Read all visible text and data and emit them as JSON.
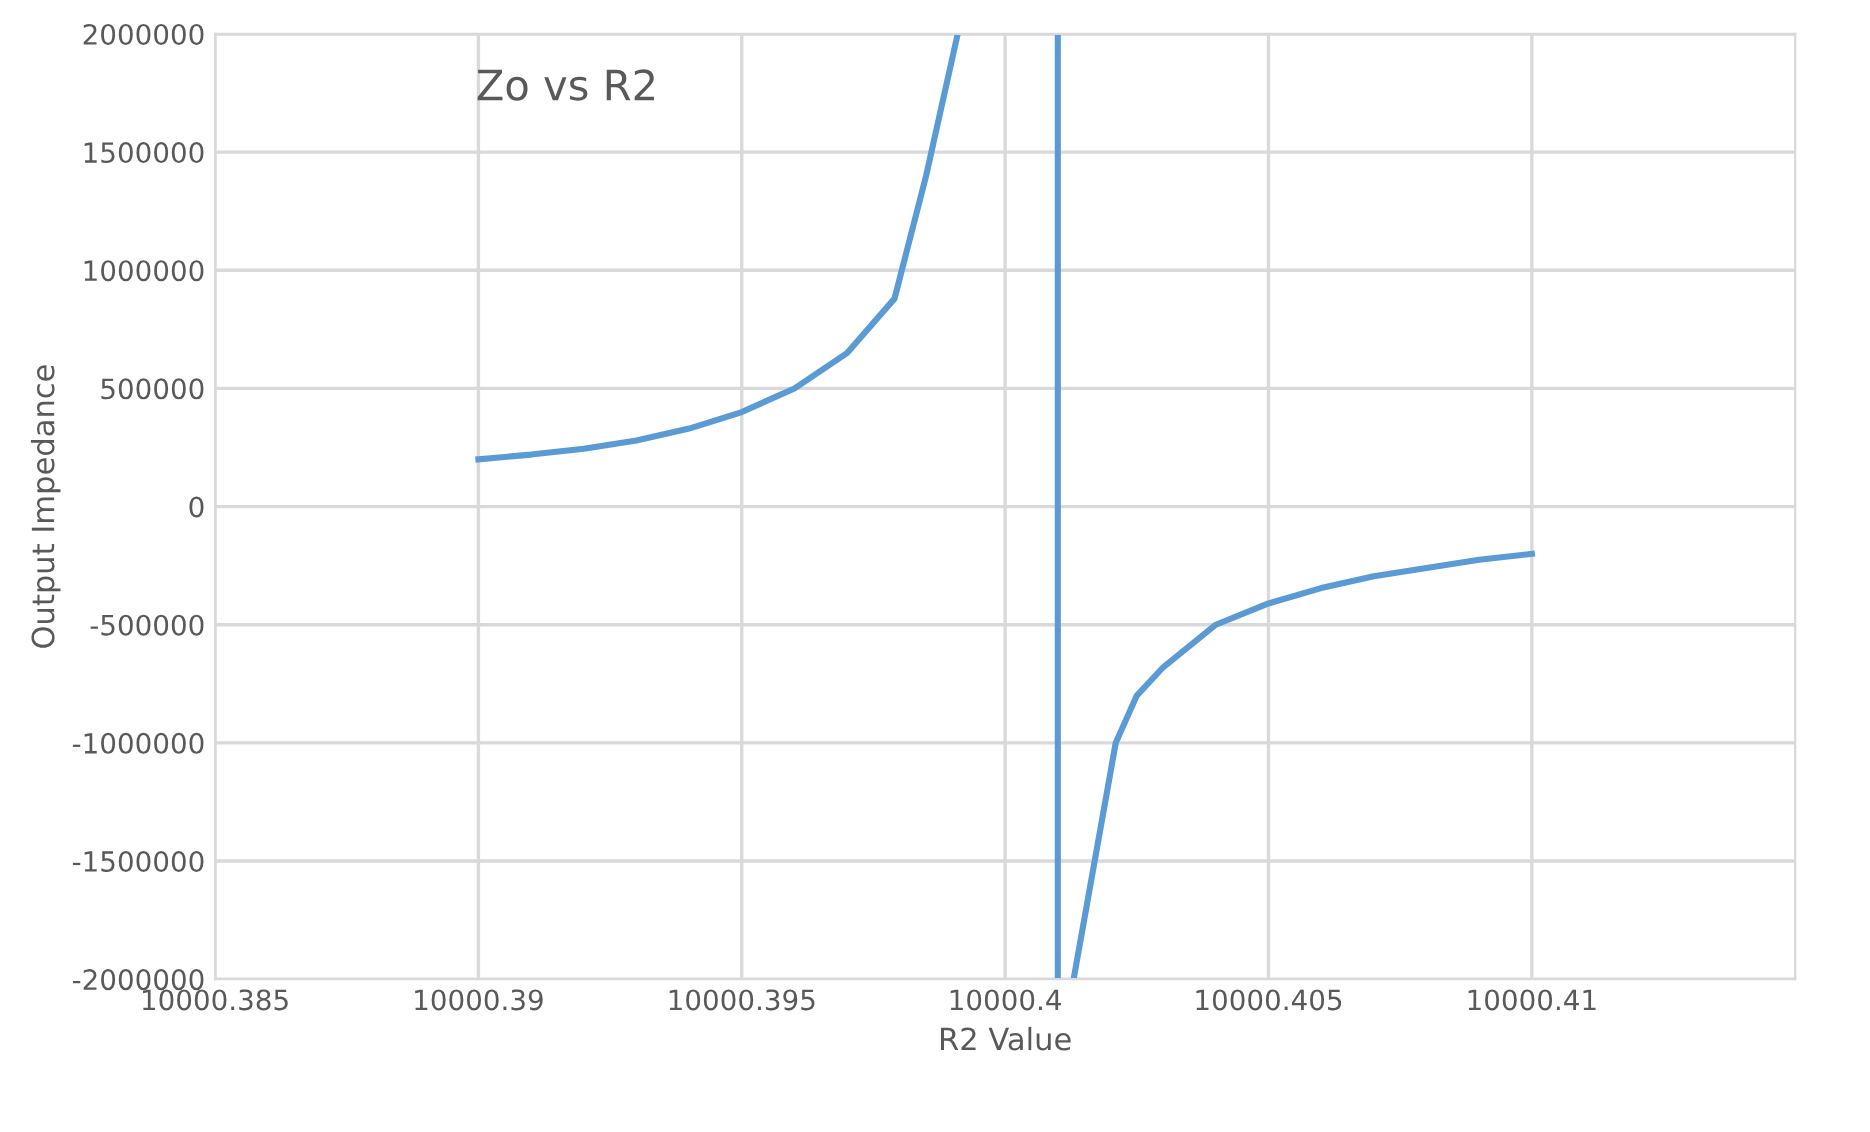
{
  "chart_data": {
    "type": "line",
    "title": "Zo vs R2",
    "xlabel": "R2 Value",
    "ylabel": "Output Impedance",
    "x": [
      10000.39,
      10000.391,
      10000.392,
      10000.393,
      10000.394,
      10000.395,
      10000.396,
      10000.397,
      10000.3979,
      10000.3985,
      10000.3991,
      null,
      10000.401,
      10000.401,
      null,
      10000.4013,
      10000.4021,
      10000.4025,
      10000.403,
      10000.404,
      10000.405,
      10000.406,
      10000.407,
      10000.408,
      10000.409,
      10000.41
    ],
    "series": [
      {
        "color": "#5b9bd5",
        "values": [
          200000,
          220000,
          245000,
          280000,
          330000,
          400000,
          500000,
          650000,
          880000,
          1400000,
          2000000,
          null,
          2000000,
          -2000000,
          null,
          -2000000,
          -1000000,
          -800000,
          -680000,
          -500000,
          -410000,
          -345000,
          -295000,
          -260000,
          -225000,
          -200000
        ]
      }
    ],
    "xlim": [
      10000.385,
      10000.415
    ],
    "xticks": [
      {
        "value": 10000.385,
        "label": "10000.385"
      },
      {
        "value": 10000.39,
        "label": "10000.39"
      },
      {
        "value": 10000.395,
        "label": "10000.395"
      },
      {
        "value": 10000.4,
        "label": "10000.4"
      },
      {
        "value": 10000.405,
        "label": "10000.405"
      },
      {
        "value": 10000.41,
        "label": "10000.41"
      }
    ],
    "ylim": [
      -2000000,
      2000000
    ],
    "yticks": [
      -2000000,
      -1500000,
      -1000000,
      -500000,
      0,
      500000,
      1000000,
      1500000,
      2000000
    ],
    "grid": true,
    "marker": "none",
    "line_style": "solid",
    "legend": false
  }
}
